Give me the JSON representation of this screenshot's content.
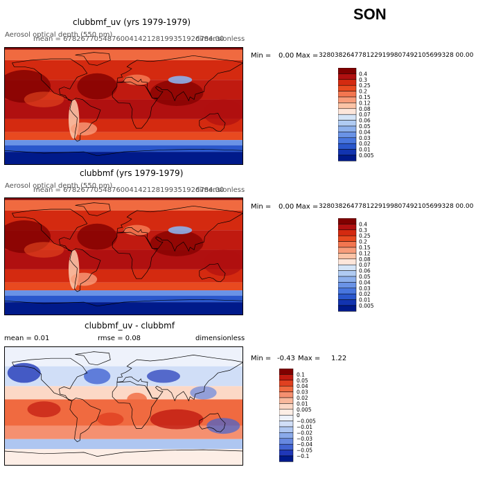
{
  "season": "SON",
  "panels": [
    {
      "title": "clubbmf_uv (yrs 1979-1979)",
      "left_label": "Aerosol optical depth (550 nm)",
      "mean_text": "mean = 6782677054876004142128199351926784.00",
      "units": "dimensionless",
      "min_label": "Min =",
      "min_value": "0.00",
      "max_label": "Max =",
      "max_value": "3280382647781229199807492105699328 00.00"
    },
    {
      "title": "clubbmf (yrs 1979-1979)",
      "left_label": "Aerosol optical depth (550 nm)",
      "mean_text": "mean = 6782677054876004142128199351926784.00",
      "units": "dimensionless",
      "min_label": "Min =",
      "min_value": "0.00",
      "max_label": "Max =",
      "max_value": "3280382647781229199807492105699328 00.00"
    },
    {
      "title": "clubbmf_uv - clubbmf",
      "mean_text": "mean =    0.01",
      "rmse_text": "rmse =    0.08",
      "units": "dimensionless",
      "min_label": "Min =",
      "min_value": "-0.43",
      "max_label": "Max =",
      "max_value": "1.22"
    }
  ],
  "chart_data": [
    {
      "type": "heatmap",
      "title": "clubbmf_uv (yrs 1979-1979)",
      "projection": "global cylindrical lon/lat map",
      "variable": "Aerosol optical depth (550 nm)",
      "units": "dimensionless",
      "colorbar": {
        "levels": [
          "0.4",
          "0.3",
          "0.25",
          "0.2",
          "0.15",
          "0.12",
          "0.08",
          "0.07",
          "0.06",
          "0.05",
          "0.04",
          "0.03",
          "0.02",
          "0.01",
          "0.005"
        ],
        "colors": [
          "#800000",
          "#b01010",
          "#d42a10",
          "#e84a20",
          "#f27650",
          "#f79c7a",
          "#fbc3a6",
          "#fde6da",
          "#d4e4f7",
          "#b0cbf2",
          "#8db0ec",
          "#6a93e6",
          "#4876de",
          "#2a57cc",
          "#1234b0",
          "#001a8a"
        ]
      }
    },
    {
      "type": "heatmap",
      "title": "clubbmf (yrs 1979-1979)",
      "projection": "global cylindrical lon/lat map",
      "variable": "Aerosol optical depth (550 nm)",
      "units": "dimensionless",
      "colorbar": {
        "levels": [
          "0.4",
          "0.3",
          "0.25",
          "0.2",
          "0.15",
          "0.12",
          "0.08",
          "0.07",
          "0.06",
          "0.05",
          "0.04",
          "0.03",
          "0.02",
          "0.01",
          "0.005"
        ],
        "colors": [
          "#800000",
          "#b01010",
          "#d42a10",
          "#e84a20",
          "#f27650",
          "#f79c7a",
          "#fbc3a6",
          "#fde6da",
          "#d4e4f7",
          "#b0cbf2",
          "#8db0ec",
          "#6a93e6",
          "#4876de",
          "#2a57cc",
          "#1234b0",
          "#001a8a"
        ]
      }
    },
    {
      "type": "heatmap",
      "title": "clubbmf_uv - clubbmf",
      "projection": "global cylindrical lon/lat map",
      "units": "dimensionless",
      "colorbar": {
        "levels": [
          "0.1",
          "0.05",
          "0.04",
          "0.03",
          "0.02",
          "0.01",
          "0.005",
          "0",
          "−0.005",
          "−0.01",
          "−0.02",
          "−0.03",
          "−0.04",
          "−0.05",
          "−0.1"
        ],
        "colors": [
          "#800000",
          "#c01a10",
          "#e04020",
          "#f06a40",
          "#f59070",
          "#f9b89c",
          "#fcd8c6",
          "#fdeee6",
          "#eef2fb",
          "#d0def7",
          "#aec6f1",
          "#8aaaea",
          "#6688e0",
          "#4264d2",
          "#2038b8",
          "#001a8a"
        ]
      }
    }
  ]
}
